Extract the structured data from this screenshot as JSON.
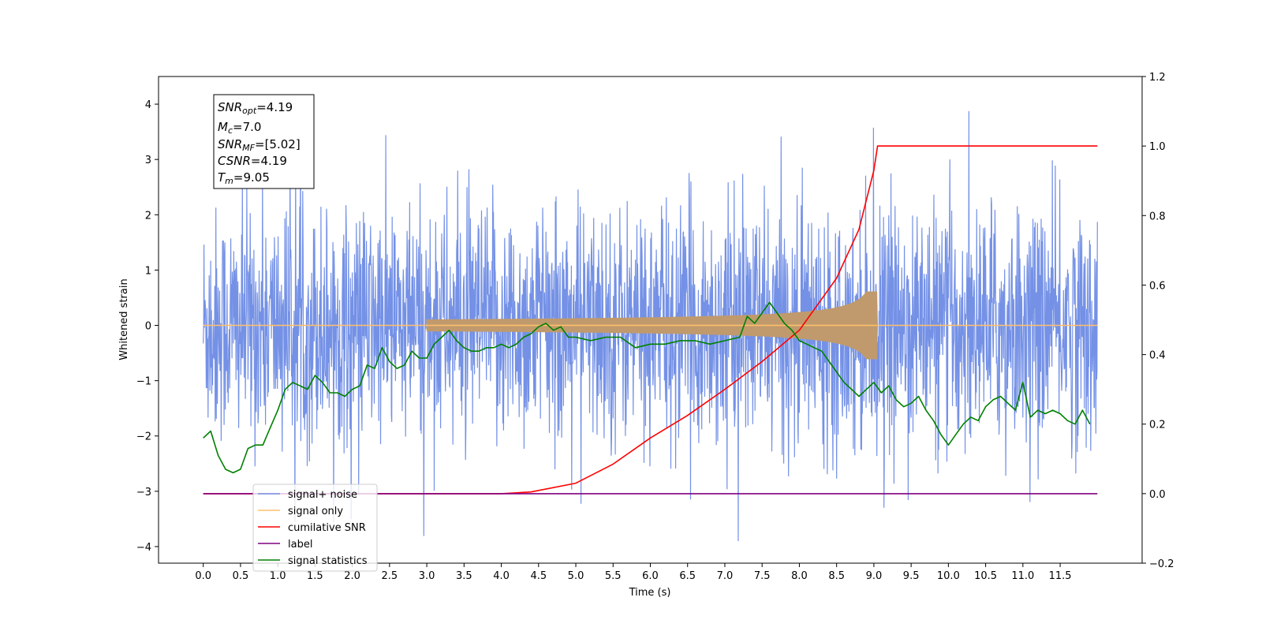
{
  "chart_data": {
    "type": "line",
    "xlabel": "Time (s)",
    "ylabel": "Whitened strain",
    "xlim": [
      -0.6,
      12.6
    ],
    "ylim": [
      -4.3,
      4.5
    ],
    "ylim_right": [
      -0.2,
      1.2
    ],
    "x_ticks": [
      "0.0",
      "0.5",
      "1.0",
      "1.5",
      "2.0",
      "2.5",
      "3.0",
      "3.5",
      "4.0",
      "4.5",
      "5.0",
      "5.5",
      "6.0",
      "6.5",
      "7.0",
      "7.5",
      "8.0",
      "8.5",
      "9.0",
      "9.5",
      "10.0",
      "10.5",
      "11.0",
      "11.5"
    ],
    "y_ticks_left": [
      "−4",
      "−3",
      "−2",
      "−1",
      "0",
      "1",
      "2",
      "3",
      "4"
    ],
    "y_ticks_right": [
      "−0.2",
      "0.0",
      "0.2",
      "0.4",
      "0.6",
      "0.8",
      "1.0",
      "1.2"
    ],
    "grid": false,
    "legend_position": "lower-left",
    "annotation": {
      "snr_opt": {
        "name": "SNR",
        "sub": "opt",
        "value": "=4.19"
      },
      "mc": {
        "name": "M",
        "sub": "c",
        "value": "=7.0"
      },
      "snr_mf": {
        "name": "SNR",
        "sub": "MF",
        "value": "=[5.02]"
      },
      "csnr": {
        "name": "CSNR",
        "sub": "",
        "value": "=4.19"
      },
      "tm": {
        "name": "T",
        "sub": "m",
        "value": "=9.05"
      }
    },
    "series": [
      {
        "name": "signal+ noise",
        "color": "#7491e6",
        "axis": "left",
        "kind": "whitened strain noise, approx. amplitude ±2.5, peaks near 4.1",
        "x_range": [
          0,
          12.0
        ]
      },
      {
        "name": "signal only",
        "color": "#ffc06b",
        "axis": "left",
        "kind": "chirp growing to ±0.6 at t=9.05",
        "x_range": [
          0,
          12.0
        ]
      },
      {
        "name": "cumilative SNR",
        "color": "#ff0000",
        "axis": "right",
        "x": [
          0,
          4.0,
          4.4,
          5.0,
          5.5,
          6.0,
          6.5,
          7.0,
          7.5,
          8.0,
          8.5,
          8.8,
          9.0,
          9.05,
          12.0
        ],
        "y": [
          0,
          0,
          0.005,
          0.03,
          0.085,
          0.16,
          0.225,
          0.3,
          0.38,
          0.47,
          0.62,
          0.76,
          0.93,
          1.0,
          1.0
        ]
      },
      {
        "name": "label",
        "color": "#800080",
        "axis": "right",
        "x": [
          0,
          12.0
        ],
        "y": [
          0,
          0
        ]
      },
      {
        "name": "signal statistics",
        "color": "#008000",
        "axis": "right",
        "x": [
          0,
          0.1,
          0.2,
          0.3,
          0.4,
          0.5,
          0.6,
          0.7,
          0.8,
          0.9,
          1.0,
          1.1,
          1.2,
          1.3,
          1.4,
          1.5,
          1.6,
          1.7,
          1.8,
          1.9,
          2.0,
          2.1,
          2.2,
          2.3,
          2.4,
          2.5,
          2.6,
          2.7,
          2.8,
          2.9,
          3.0,
          3.1,
          3.2,
          3.3,
          3.4,
          3.5,
          3.6,
          3.7,
          3.8,
          3.9,
          4.0,
          4.1,
          4.2,
          4.3,
          4.4,
          4.5,
          4.6,
          4.7,
          4.8,
          4.9,
          5.0,
          5.2,
          5.4,
          5.6,
          5.8,
          6.0,
          6.2,
          6.4,
          6.6,
          6.8,
          7.0,
          7.2,
          7.3,
          7.4,
          7.5,
          7.6,
          7.7,
          7.8,
          7.9,
          8.0,
          8.1,
          8.2,
          8.3,
          8.4,
          8.5,
          8.6,
          8.7,
          8.8,
          8.9,
          9.0,
          9.1,
          9.2,
          9.3,
          9.4,
          9.5,
          9.6,
          9.7,
          9.8,
          9.9,
          10.0,
          10.1,
          10.2,
          10.3,
          10.4,
          10.5,
          10.6,
          10.7,
          10.8,
          10.9,
          11.0,
          11.1,
          11.2,
          11.3,
          11.4,
          11.5,
          11.6,
          11.7,
          11.8,
          11.9
        ],
        "y": [
          0.16,
          0.18,
          0.11,
          0.07,
          0.06,
          0.07,
          0.13,
          0.14,
          0.14,
          0.19,
          0.24,
          0.3,
          0.32,
          0.31,
          0.3,
          0.34,
          0.32,
          0.29,
          0.29,
          0.28,
          0.3,
          0.31,
          0.37,
          0.36,
          0.42,
          0.38,
          0.36,
          0.37,
          0.41,
          0.39,
          0.39,
          0.43,
          0.45,
          0.47,
          0.44,
          0.42,
          0.41,
          0.41,
          0.42,
          0.42,
          0.43,
          0.42,
          0.43,
          0.45,
          0.46,
          0.48,
          0.49,
          0.47,
          0.48,
          0.45,
          0.45,
          0.44,
          0.45,
          0.45,
          0.42,
          0.43,
          0.43,
          0.44,
          0.44,
          0.43,
          0.44,
          0.45,
          0.51,
          0.49,
          0.52,
          0.55,
          0.52,
          0.49,
          0.47,
          0.44,
          0.43,
          0.42,
          0.41,
          0.38,
          0.35,
          0.32,
          0.3,
          0.28,
          0.3,
          0.32,
          0.29,
          0.31,
          0.27,
          0.25,
          0.26,
          0.28,
          0.24,
          0.21,
          0.17,
          0.14,
          0.17,
          0.2,
          0.22,
          0.21,
          0.25,
          0.27,
          0.28,
          0.26,
          0.24,
          0.32,
          0.22,
          0.24,
          0.23,
          0.24,
          0.23,
          0.21,
          0.2,
          0.24,
          0.2
        ]
      }
    ]
  }
}
